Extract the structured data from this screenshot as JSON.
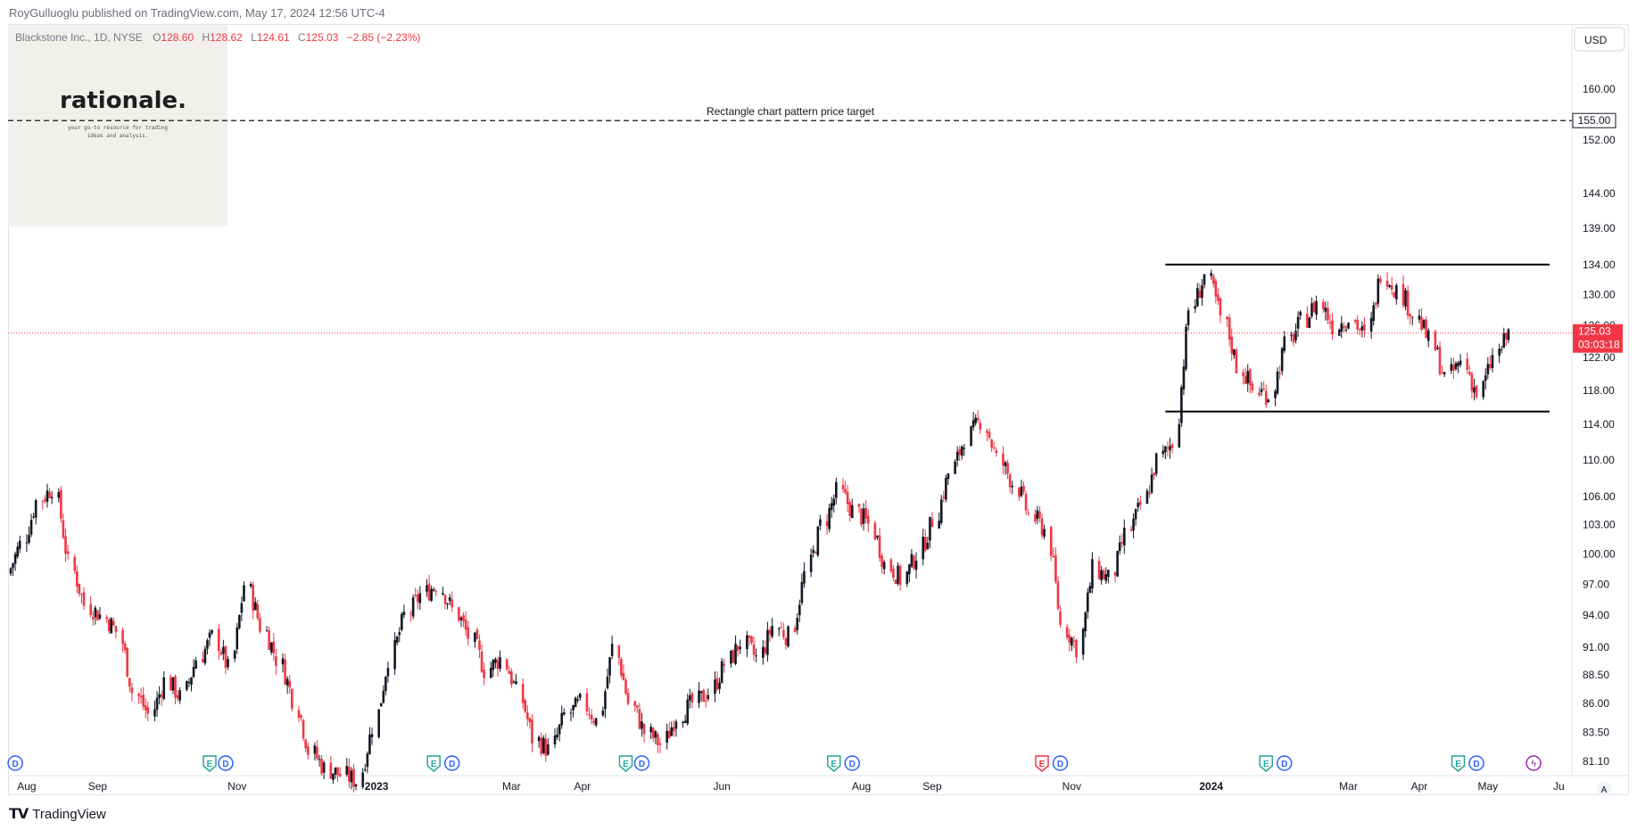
{
  "header": {
    "publisher": "RoyGulluoglu published on TradingView.com, May 17, 2024 12:56 UTC-4"
  },
  "symbol": {
    "name": "Blackstone Inc., 1D, NYSE",
    "o_label": "O",
    "o_value": "128.60",
    "h_label": "H",
    "h_value": "128.62",
    "l_label": "L",
    "l_value": "124.61",
    "c_label": "C",
    "c_value": "125.03",
    "change": "−2.85 (−2.23%)"
  },
  "logo": {
    "title": "rationale.",
    "tagline_1": "your go-to resource for trading",
    "tagline_2": "ideas and analysis."
  },
  "currency": "USD",
  "annotation": "Rectangle chart pattern price target",
  "price_label": "125.03",
  "countdown": "03:03:18",
  "target_label": "155.00",
  "footer": {
    "brand": "TradingView"
  },
  "colors": {
    "up": "#131722",
    "down": "#f23645",
    "price_line": "#f23645",
    "earnings": "#26a69a",
    "earnings_neg": "#f23645",
    "dividend": "#2962ff",
    "axis_text": "#131722"
  },
  "chart_data": {
    "type": "candlestick",
    "y_axis": "log",
    "ylim": [
      80,
      165
    ],
    "yticks": [
      "81.10",
      "83.50",
      "86.00",
      "88.50",
      "91.00",
      "94.00",
      "97.00",
      "100.00",
      "103.00",
      "106.00",
      "110.00",
      "114.00",
      "118.00",
      "122.00",
      "126.00",
      "130.00",
      "134.00",
      "139.00",
      "144.00",
      "152.00",
      "160.00"
    ],
    "xticks": [
      "Aug",
      "Sep",
      "Nov",
      "2023",
      "Mar",
      "Apr",
      "Jun",
      "Aug",
      "Sep",
      "Nov",
      "2024",
      "Mar",
      "Apr",
      "May",
      "Ju"
    ],
    "x_start": "2022-07-25",
    "x_end": "2024-06-04",
    "last_price": 125.03,
    "target_price": 155.0,
    "rectangle": {
      "top": 134.0,
      "bottom": 115.5,
      "from": "2023-12-12",
      "to": "2024-05-28"
    },
    "closes_weekly": [
      [
        "2022-07-25",
        98.0
      ],
      [
        "2022-08-01",
        101.0
      ],
      [
        "2022-08-08",
        105.5
      ],
      [
        "2022-08-15",
        107.0
      ],
      [
        "2022-08-22",
        99.0
      ],
      [
        "2022-08-29",
        95.0
      ],
      [
        "2022-09-05",
        94.0
      ],
      [
        "2022-09-12",
        92.5
      ],
      [
        "2022-09-19",
        87.0
      ],
      [
        "2022-09-26",
        85.0
      ],
      [
        "2022-10-03",
        88.0
      ],
      [
        "2022-10-10",
        86.5
      ],
      [
        "2022-10-17",
        90.0
      ],
      [
        "2022-10-24",
        92.0
      ],
      [
        "2022-10-31",
        89.0
      ],
      [
        "2022-11-07",
        97.0
      ],
      [
        "2022-11-14",
        93.0
      ],
      [
        "2022-11-21",
        90.0
      ],
      [
        "2022-11-28",
        86.5
      ],
      [
        "2022-12-05",
        82.0
      ],
      [
        "2022-12-12",
        80.5
      ],
      [
        "2022-12-19",
        80.0
      ],
      [
        "2022-12-26",
        79.5
      ],
      [
        "2023-01-02",
        84.0
      ],
      [
        "2023-01-09",
        90.0
      ],
      [
        "2023-01-16",
        94.0
      ],
      [
        "2023-01-23",
        96.0
      ],
      [
        "2023-01-30",
        97.0
      ],
      [
        "2023-02-06",
        94.5
      ],
      [
        "2023-02-13",
        92.0
      ],
      [
        "2023-02-20",
        89.0
      ],
      [
        "2023-02-27",
        90.0
      ],
      [
        "2023-03-06",
        87.0
      ],
      [
        "2023-03-13",
        83.0
      ],
      [
        "2023-03-20",
        82.0
      ],
      [
        "2023-03-27",
        85.0
      ],
      [
        "2023-04-03",
        86.0
      ],
      [
        "2023-04-10",
        84.5
      ],
      [
        "2023-04-17",
        91.0
      ],
      [
        "2023-04-24",
        86.0
      ],
      [
        "2023-05-01",
        83.5
      ],
      [
        "2023-05-08",
        82.5
      ],
      [
        "2023-05-15",
        85.0
      ],
      [
        "2023-05-22",
        86.0
      ],
      [
        "2023-05-29",
        87.0
      ],
      [
        "2023-06-05",
        89.5
      ],
      [
        "2023-06-12",
        91.5
      ],
      [
        "2023-06-19",
        90.0
      ],
      [
        "2023-06-26",
        93.0
      ],
      [
        "2023-07-03",
        92.0
      ],
      [
        "2023-07-10",
        98.0
      ],
      [
        "2023-07-17",
        103.0
      ],
      [
        "2023-07-24",
        106.5
      ],
      [
        "2023-07-31",
        104.5
      ],
      [
        "2023-08-07",
        103.0
      ],
      [
        "2023-08-14",
        99.0
      ],
      [
        "2023-08-21",
        97.5
      ],
      [
        "2023-08-28",
        100.0
      ],
      [
        "2023-09-04",
        103.5
      ],
      [
        "2023-09-11",
        108.5
      ],
      [
        "2023-09-18",
        112.5
      ],
      [
        "2023-09-25",
        114.5
      ],
      [
        "2023-10-02",
        110.0
      ],
      [
        "2023-10-09",
        107.5
      ],
      [
        "2023-10-16",
        104.0
      ],
      [
        "2023-10-23",
        102.5
      ],
      [
        "2023-10-30",
        93.0
      ],
      [
        "2023-11-06",
        91.0
      ],
      [
        "2023-11-13",
        98.5
      ],
      [
        "2023-11-20",
        97.5
      ],
      [
        "2023-11-27",
        102.0
      ],
      [
        "2023-12-04",
        105.0
      ],
      [
        "2023-12-11",
        110.0
      ],
      [
        "2023-12-18",
        112.0
      ],
      [
        "2023-12-25",
        128.0
      ],
      [
        "2024-01-01",
        132.5
      ],
      [
        "2024-01-08",
        127.0
      ],
      [
        "2024-01-15",
        121.0
      ],
      [
        "2024-01-22",
        118.0
      ],
      [
        "2024-01-29",
        117.5
      ],
      [
        "2024-02-05",
        123.5
      ],
      [
        "2024-02-12",
        126.5
      ],
      [
        "2024-02-19",
        129.0
      ],
      [
        "2024-02-26",
        126.0
      ],
      [
        "2024-03-04",
        127.0
      ],
      [
        "2024-03-11",
        124.5
      ],
      [
        "2024-03-18",
        133.0
      ],
      [
        "2024-03-25",
        130.5
      ],
      [
        "2024-04-01",
        127.5
      ],
      [
        "2024-04-08",
        124.0
      ],
      [
        "2024-04-15",
        119.5
      ],
      [
        "2024-04-22",
        121.5
      ],
      [
        "2024-04-29",
        117.5
      ],
      [
        "2024-05-06",
        122.0
      ],
      [
        "2024-05-13",
        125.03
      ]
    ]
  }
}
